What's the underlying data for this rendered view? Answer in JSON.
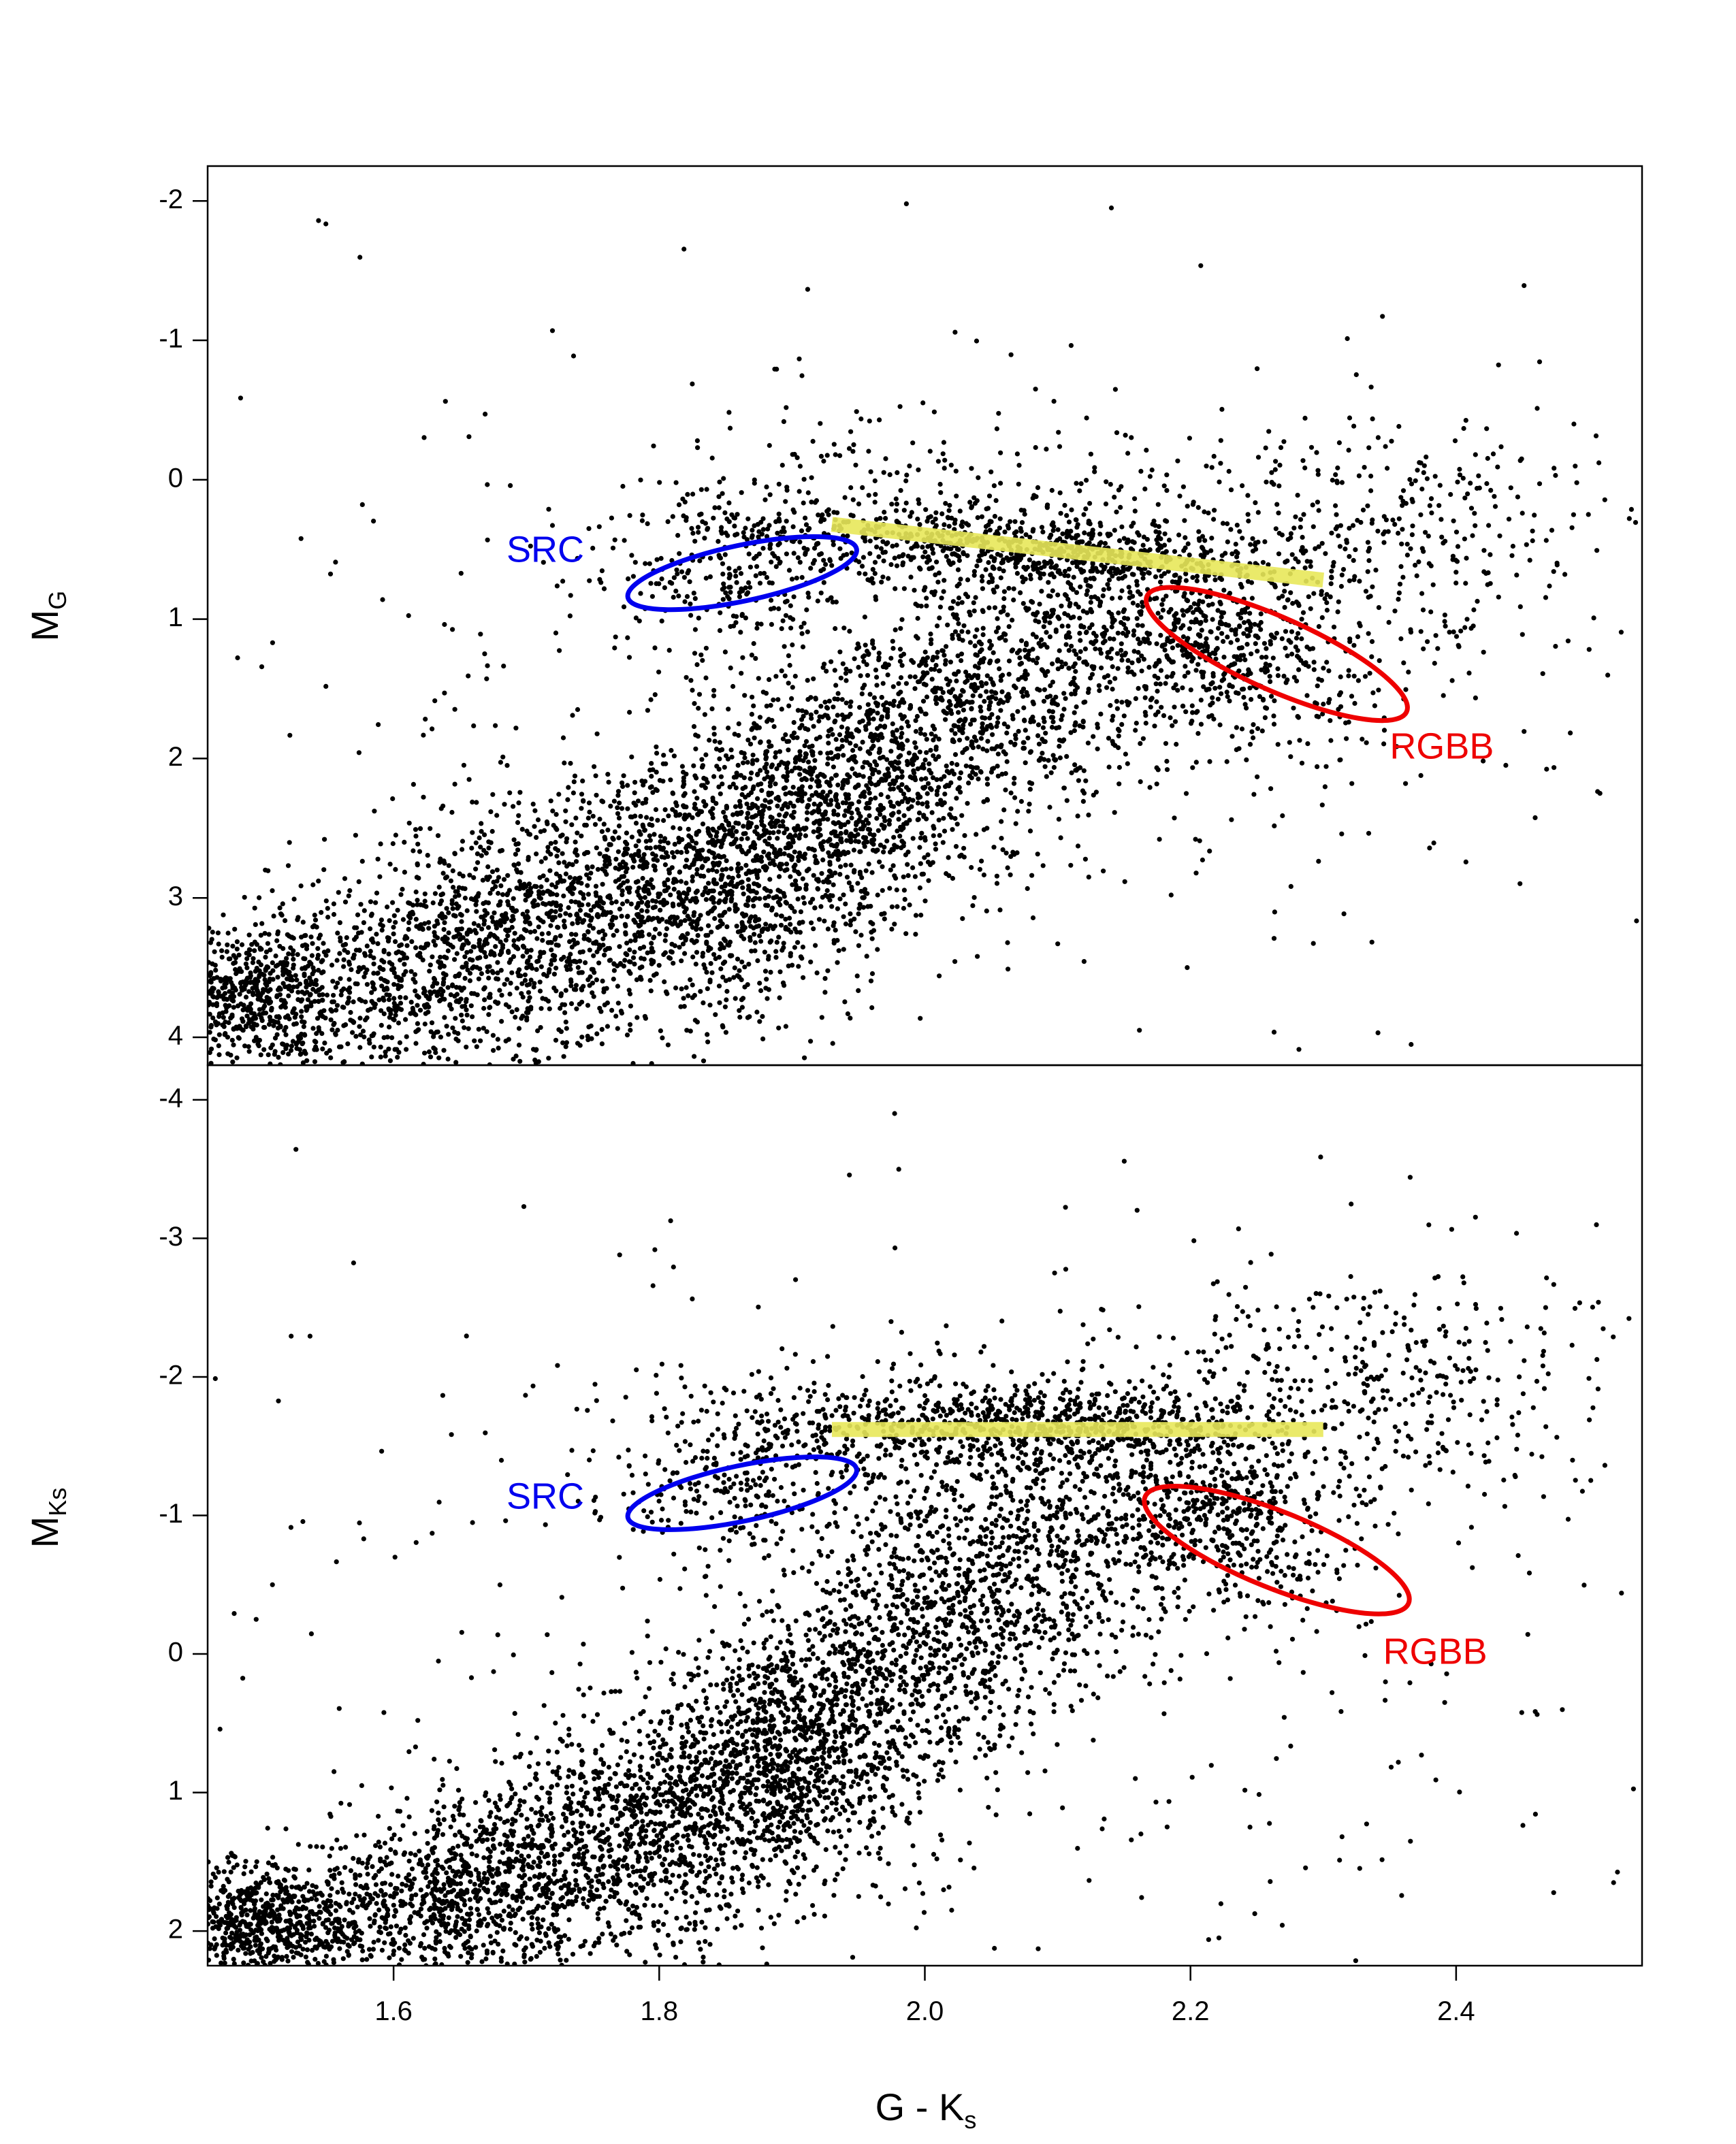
{
  "chart_data": [
    {
      "panel": "top",
      "type": "scatter",
      "title": "",
      "ylabel": {
        "main": "M",
        "sub": "G"
      },
      "xlabel": "",
      "xlim": [
        1.46,
        2.54
      ],
      "ylim": [
        4.2,
        -2.25
      ],
      "y_reversed": true,
      "yticks": [
        -2,
        -1,
        0,
        1,
        2,
        3,
        4
      ],
      "ytick_labels": [
        "-2",
        "-1",
        "0",
        "1",
        "2",
        "3",
        "4"
      ],
      "show_xtick_labels": false,
      "point_color": "#000000",
      "point_clusters": [
        {
          "cx": 1.5,
          "cy": 3.75,
          "sx": 0.035,
          "sy": 0.3,
          "n": 700,
          "rho": 0.0
        },
        {
          "cx": 1.64,
          "cy": 3.45,
          "sx": 0.06,
          "sy": 0.45,
          "n": 900,
          "rho": -0.3
        },
        {
          "cx": 1.78,
          "cy": 3.0,
          "sx": 0.07,
          "sy": 0.55,
          "n": 1100,
          "rho": -0.4
        },
        {
          "cx": 1.9,
          "cy": 2.55,
          "sx": 0.06,
          "sy": 0.6,
          "n": 1100,
          "rho": -0.4
        },
        {
          "cx": 2.0,
          "cy": 1.9,
          "sx": 0.06,
          "sy": 0.6,
          "n": 800,
          "rho": -0.4
        },
        {
          "cx": 2.12,
          "cy": 1.2,
          "sx": 0.07,
          "sy": 0.55,
          "n": 650,
          "rho": -0.3
        },
        {
          "cx": 2.08,
          "cy": 0.5,
          "sx": 0.1,
          "sy": 0.15,
          "n": 650,
          "rho": 0.5
        },
        {
          "cx": 2.23,
          "cy": 1.25,
          "sx": 0.05,
          "sy": 0.35,
          "n": 450,
          "rho": 0.3
        },
        {
          "cx": 1.86,
          "cy": 0.65,
          "sx": 0.05,
          "sy": 0.25,
          "n": 230,
          "rho": 0.0
        },
        {
          "cx": 2.35,
          "cy": 0.4,
          "sx": 0.09,
          "sy": 0.5,
          "n": 350,
          "rho": 0.0
        },
        {
          "cx": 1.95,
          "cy": 0.25,
          "sx": 0.09,
          "sy": 0.3,
          "n": 200,
          "rho": 0.0
        },
        {
          "cx": 2.0,
          "cy": 1.6,
          "sx": 0.28,
          "sy": 1.4,
          "n": 500,
          "rho": 0.0
        }
      ],
      "scatter_seed": 7,
      "features": {
        "red_clump_line": {
          "x": [
            1.93,
            2.3
          ],
          "y": [
            0.32,
            0.72
          ],
          "color": "#e8e85a",
          "opacity": 0.9
        },
        "regions": [
          {
            "name": "SRC",
            "cx": 1.8625,
            "cy": 0.67,
            "rx": 0.088,
            "ry": 0.4,
            "angle_deg": -12,
            "color": "#0000ee",
            "label": "SRC",
            "label_x": 1.685,
            "label_y": 0.52
          },
          {
            "name": "RGBB",
            "cx": 2.265,
            "cy": 1.25,
            "rx": 0.107,
            "ry": 0.52,
            "angle_deg": 24,
            "color": "#ee0000",
            "label": "RGBB",
            "label_x": 2.35,
            "label_y": 1.93
          }
        ]
      }
    },
    {
      "panel": "bottom",
      "type": "scatter",
      "title": "",
      "ylabel": {
        "main": "M",
        "sub": "Ks"
      },
      "xlabel": {
        "main": "G - K",
        "sub": "s"
      },
      "xlim": [
        1.46,
        2.54
      ],
      "ylim": [
        2.25,
        -4.25
      ],
      "y_reversed": true,
      "yticks": [
        -4,
        -3,
        -2,
        -1,
        0,
        1,
        2
      ],
      "ytick_labels": [
        "-4",
        "-3",
        "-2",
        "-1",
        "0",
        "1",
        "2"
      ],
      "xticks": [
        1.6,
        1.8,
        2.0,
        2.2,
        2.4
      ],
      "xtick_labels": [
        "1.6",
        "1.8",
        "2.0",
        "2.2",
        "2.4"
      ],
      "show_xtick_labels": true,
      "point_color": "#000000",
      "point_clusters": [
        {
          "cx": 1.5,
          "cy": 1.95,
          "sx": 0.035,
          "sy": 0.22,
          "n": 700,
          "rho": 0.0
        },
        {
          "cx": 1.64,
          "cy": 1.75,
          "sx": 0.06,
          "sy": 0.35,
          "n": 900,
          "rho": -0.3
        },
        {
          "cx": 1.78,
          "cy": 1.3,
          "sx": 0.07,
          "sy": 0.5,
          "n": 1100,
          "rho": -0.4
        },
        {
          "cx": 1.9,
          "cy": 0.7,
          "sx": 0.06,
          "sy": 0.55,
          "n": 1100,
          "rho": -0.4
        },
        {
          "cx": 2.0,
          "cy": -0.1,
          "sx": 0.06,
          "sy": 0.6,
          "n": 800,
          "rho": -0.4
        },
        {
          "cx": 2.12,
          "cy": -0.9,
          "sx": 0.07,
          "sy": 0.55,
          "n": 650,
          "rho": -0.3
        },
        {
          "cx": 2.08,
          "cy": -1.65,
          "sx": 0.1,
          "sy": 0.14,
          "n": 650,
          "rho": 0.0
        },
        {
          "cx": 2.23,
          "cy": -1.0,
          "sx": 0.05,
          "sy": 0.35,
          "n": 450,
          "rho": 0.3
        },
        {
          "cx": 1.86,
          "cy": -1.18,
          "sx": 0.05,
          "sy": 0.25,
          "n": 230,
          "rho": 0.0
        },
        {
          "cx": 2.35,
          "cy": -2.0,
          "sx": 0.09,
          "sy": 0.45,
          "n": 350,
          "rho": 0.0
        },
        {
          "cx": 1.95,
          "cy": -1.7,
          "sx": 0.09,
          "sy": 0.3,
          "n": 200,
          "rho": 0.0
        },
        {
          "cx": 2.0,
          "cy": -0.2,
          "sx": 0.28,
          "sy": 1.4,
          "n": 500,
          "rho": 0.0
        }
      ],
      "scatter_seed": 11,
      "features": {
        "red_clump_line": {
          "x": [
            1.93,
            2.3
          ],
          "y": [
            -1.62,
            -1.62
          ],
          "color": "#e8e85a",
          "opacity": 0.9
        },
        "regions": [
          {
            "name": "SRC",
            "cx": 1.8625,
            "cy": -1.16,
            "rx": 0.088,
            "ry": 0.4,
            "angle_deg": -12,
            "color": "#0000ee",
            "label": "SRC",
            "label_x": 1.685,
            "label_y": -1.12
          },
          {
            "name": "RGBB",
            "cx": 2.265,
            "cy": -0.75,
            "rx": 0.107,
            "ry": 0.55,
            "angle_deg": 22,
            "color": "#ee0000",
            "label": "RGBB",
            "label_x": 2.345,
            "label_y": 0.0
          }
        ]
      }
    }
  ]
}
